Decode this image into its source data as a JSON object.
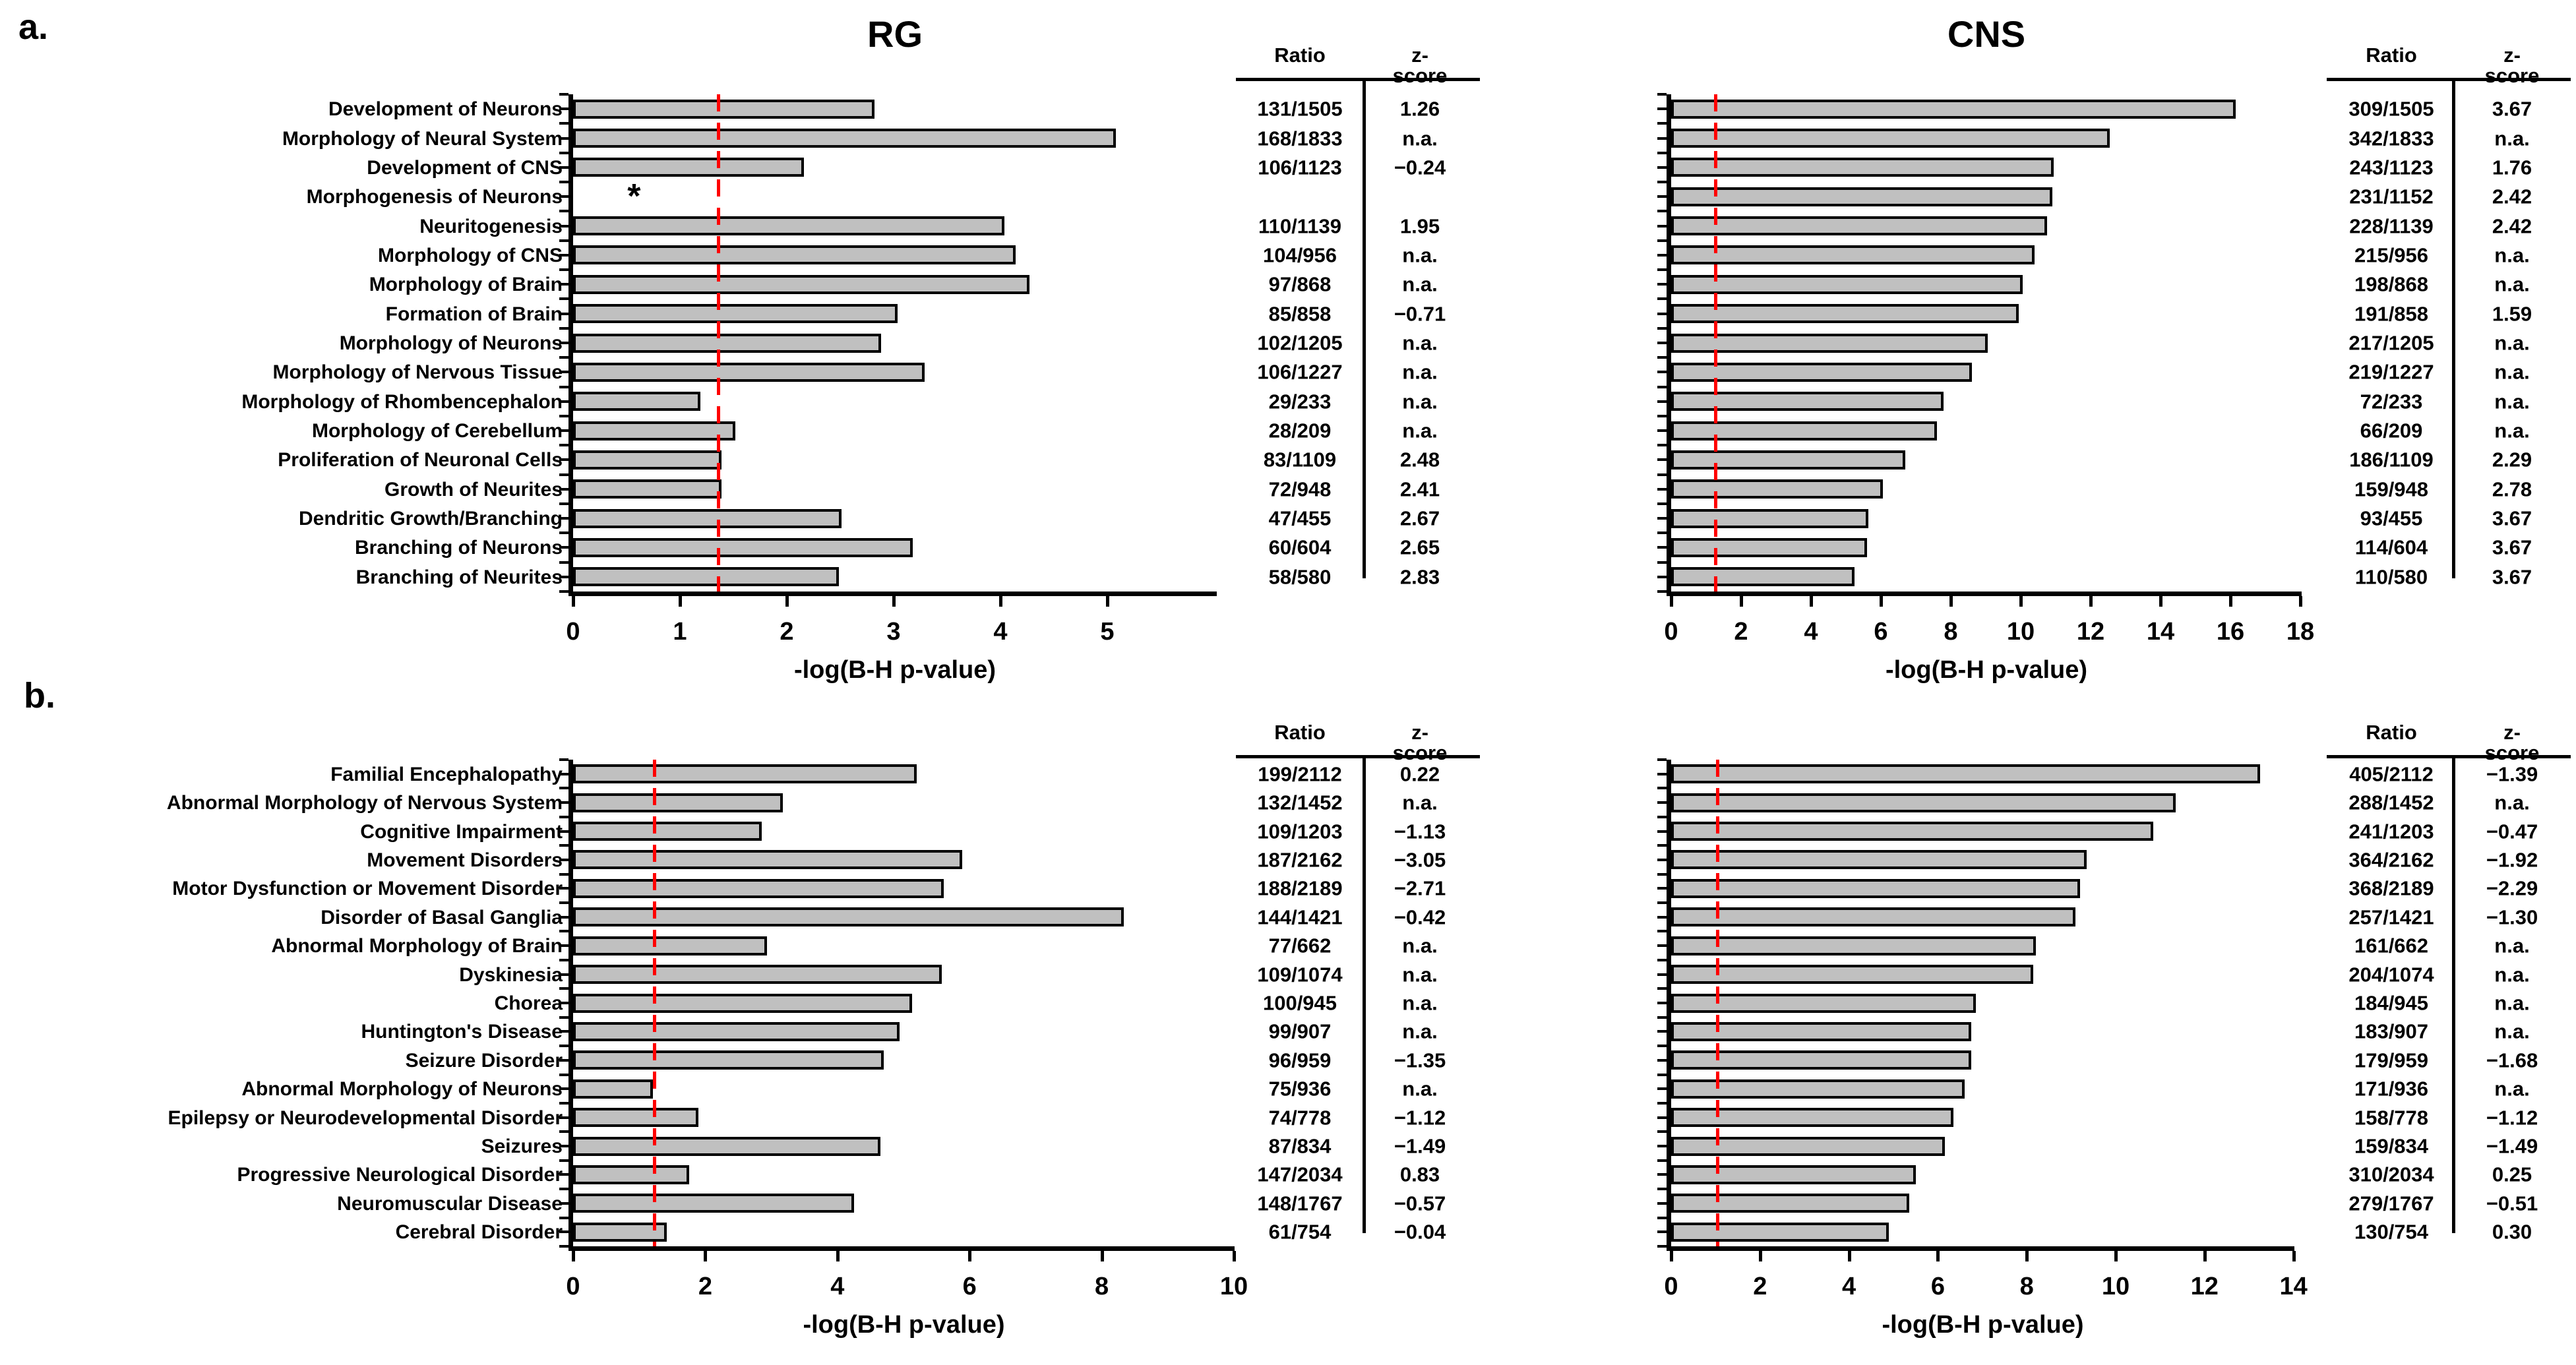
{
  "figure": {
    "panel_a_letter": "a.",
    "panel_b_letter": "b.",
    "bar_fill_color": "#c0c0c0",
    "bar_border_color": "#000000",
    "threshold_color": "#ff0000"
  },
  "chart_data": [
    {
      "id": "a-rg",
      "type": "bar",
      "orientation": "horizontal",
      "panel": "a",
      "title": "RG",
      "xlabel": "-log(B-H p-value)",
      "xlim": [
        0,
        5.8
      ],
      "xticks": [
        0,
        1,
        2,
        3,
        4,
        5
      ],
      "threshold_x": 1.36,
      "grid": false,
      "show_category_labels": true,
      "categories": [
        "Development of Neurons",
        "Morphology of Neural System",
        "Development of CNS",
        "Morphogenesis of Neurons",
        "Neuritogenesis",
        "Morphology of CNS",
        "Morphology of Brain",
        "Formation of Brain",
        "Morphology of Neurons",
        "Morphology of Nervous Tissue",
        "Morphology of Rhombencephalon",
        "Morphology of Cerebellum",
        "Proliferation of Neuronal Cells",
        "Growth of Neurites",
        "Dendritic Growth/Branching",
        "Branching of Neurons",
        "Branching of Neurites"
      ],
      "values": [
        2.82,
        5.08,
        2.16,
        0,
        4.04,
        4.14,
        4.27,
        3.04,
        2.88,
        3.29,
        1.19,
        1.52,
        1.39,
        1.39,
        2.51,
        3.18,
        2.49
      ],
      "annotations": [
        {
          "row": 3,
          "x": 0.57,
          "text": "*"
        }
      ],
      "table": {
        "headers": [
          "Ratio",
          "z-score"
        ],
        "rows": [
          [
            "131/1505",
            "1.26"
          ],
          [
            "168/1833",
            "n.a."
          ],
          [
            "106/1123",
            "−0.24"
          ],
          [
            "",
            ""
          ],
          [
            "110/1139",
            "1.95"
          ],
          [
            "104/956",
            "n.a."
          ],
          [
            "97/868",
            "n.a."
          ],
          [
            "85/858",
            "−0.71"
          ],
          [
            "102/1205",
            "n.a."
          ],
          [
            "106/1227",
            "n.a."
          ],
          [
            "29/233",
            "n.a."
          ],
          [
            "28/209",
            "n.a."
          ],
          [
            "83/1109",
            "2.48"
          ],
          [
            "72/948",
            "2.41"
          ],
          [
            "47/455",
            "2.67"
          ],
          [
            "60/604",
            "2.65"
          ],
          [
            "58/580",
            "2.83"
          ]
        ]
      }
    },
    {
      "id": "a-cns",
      "type": "bar",
      "orientation": "horizontal",
      "panel": "a",
      "title": "CNS",
      "xlabel": "-log(B-H p-value)",
      "xlim": [
        0,
        18
      ],
      "xticks": [
        0,
        2,
        4,
        6,
        8,
        10,
        12,
        14,
        16,
        18
      ],
      "threshold_x": 1.27,
      "grid": false,
      "show_category_labels": false,
      "categories": [
        "Development of Neurons",
        "Morphology of Neural System",
        "Development of CNS",
        "Morphogenesis of Neurons",
        "Neuritogenesis",
        "Morphology of CNS",
        "Morphology of Brain",
        "Formation of Brain",
        "Morphology of Neurons",
        "Morphology of Nervous Tissue",
        "Morphology of Rhombencephalon",
        "Morphology of Cerebellum",
        "Proliferation of Neuronal Cells",
        "Growth of Neurites",
        "Dendritic Growth/Branching",
        "Branching of Neurons",
        "Branching of Neurites"
      ],
      "values": [
        16.15,
        12.55,
        10.95,
        10.9,
        10.75,
        10.4,
        10.05,
        9.95,
        9.05,
        8.6,
        7.8,
        7.6,
        6.7,
        6.05,
        5.65,
        5.6,
        5.25
      ],
      "annotations": [],
      "table": {
        "headers": [
          "Ratio",
          "z-score"
        ],
        "rows": [
          [
            "309/1505",
            "3.67"
          ],
          [
            "342/1833",
            "n.a."
          ],
          [
            "243/1123",
            "1.76"
          ],
          [
            "231/1152",
            "2.42"
          ],
          [
            "228/1139",
            "2.42"
          ],
          [
            "215/956",
            "n.a."
          ],
          [
            "198/868",
            "n.a."
          ],
          [
            "191/858",
            "1.59"
          ],
          [
            "217/1205",
            "n.a."
          ],
          [
            "219/1227",
            "n.a."
          ],
          [
            "72/233",
            "n.a."
          ],
          [
            "66/209",
            "n.a."
          ],
          [
            "186/1109",
            "2.29"
          ],
          [
            "159/948",
            "2.78"
          ],
          [
            "93/455",
            "3.67"
          ],
          [
            "114/604",
            "3.67"
          ],
          [
            "110/580",
            "3.67"
          ]
        ]
      }
    },
    {
      "id": "b-rg",
      "type": "bar",
      "orientation": "horizontal",
      "panel": "b",
      "title": "",
      "xlabel": "-log(B-H p-value)",
      "xlim": [
        0,
        10
      ],
      "xticks": [
        0,
        2,
        4,
        6,
        8,
        10
      ],
      "threshold_x": 1.23,
      "grid": false,
      "show_category_labels": true,
      "categories": [
        "Familial Encephalopathy",
        "Abnormal Morphology of Nervous System",
        "Cognitive Impairment",
        "Movement Disorders",
        "Motor Dysfunction or Movement Disorder",
        "Disorder of Basal Ganglia",
        "Abnormal Morphology of Brain",
        "Dyskinesia",
        "Chorea",
        "Huntington's Disease",
        "Seizure Disorder",
        "Abnormal Morphology of Neurons",
        "Epilepsy or Neurodevelopmental Disorder",
        "Seizures",
        "Progressive Neurological Disorder",
        "Neuromuscular Disease",
        "Cerebral Disorder"
      ],
      "values": [
        5.2,
        3.17,
        2.85,
        5.89,
        5.61,
        8.33,
        2.93,
        5.58,
        5.13,
        4.94,
        4.7,
        1.21,
        1.9,
        4.65,
        1.76,
        4.25,
        1.42
      ],
      "annotations": [],
      "table": {
        "headers": [
          "Ratio",
          "z-score"
        ],
        "rows": [
          [
            "199/2112",
            "0.22"
          ],
          [
            "132/1452",
            "n.a."
          ],
          [
            "109/1203",
            "−1.13"
          ],
          [
            "187/2162",
            "−3.05"
          ],
          [
            "188/2189",
            "−2.71"
          ],
          [
            "144/1421",
            "−0.42"
          ],
          [
            "77/662",
            "n.a."
          ],
          [
            "109/1074",
            "n.a."
          ],
          [
            "100/945",
            "n.a."
          ],
          [
            "99/907",
            "n.a."
          ],
          [
            "96/959",
            "−1.35"
          ],
          [
            "75/936",
            "n.a."
          ],
          [
            "74/778",
            "−1.12"
          ],
          [
            "87/834",
            "−1.49"
          ],
          [
            "147/2034",
            "0.83"
          ],
          [
            "148/1767",
            "−0.57"
          ],
          [
            "61/754",
            "−0.04"
          ]
        ]
      }
    },
    {
      "id": "b-cns",
      "type": "bar",
      "orientation": "horizontal",
      "panel": "b",
      "title": "",
      "xlabel": "-log(B-H p-value)",
      "xlim": [
        0,
        14
      ],
      "xticks": [
        0,
        2,
        4,
        6,
        8,
        10,
        12,
        14
      ],
      "threshold_x": 1.04,
      "grid": false,
      "show_category_labels": false,
      "categories": [
        "Familial Encephalopathy",
        "Abnormal Morphology of Nervous System",
        "Cognitive Impairment",
        "Movement Disorders",
        "Motor Dysfunction or Movement Disorder",
        "Disorder of Basal Ganglia",
        "Abnormal Morphology of Brain",
        "Dyskinesia",
        "Chorea",
        "Huntington's Disease",
        "Seizure Disorder",
        "Abnormal Morphology of Neurons",
        "Epilepsy or Neurodevelopmental Disorder",
        "Seizures",
        "Progressive Neurological Disorder",
        "Neuromuscular Disease",
        "Cerebral Disorder"
      ],
      "values": [
        13.25,
        11.35,
        10.85,
        9.35,
        9.2,
        9.1,
        8.2,
        8.15,
        6.85,
        6.75,
        6.75,
        6.6,
        6.35,
        6.15,
        5.5,
        5.35,
        4.9
      ],
      "annotations": [],
      "table": {
        "headers": [
          "Ratio",
          "z-score"
        ],
        "rows": [
          [
            "405/2112",
            "−1.39"
          ],
          [
            "288/1452",
            "n.a."
          ],
          [
            "241/1203",
            "−0.47"
          ],
          [
            "364/2162",
            "−1.92"
          ],
          [
            "368/2189",
            "−2.29"
          ],
          [
            "257/1421",
            "−1.30"
          ],
          [
            "161/662",
            "n.a."
          ],
          [
            "204/1074",
            "n.a."
          ],
          [
            "184/945",
            "n.a."
          ],
          [
            "183/907",
            "n.a."
          ],
          [
            "179/959",
            "−1.68"
          ],
          [
            "171/936",
            "n.a."
          ],
          [
            "158/778",
            "−1.12"
          ],
          [
            "159/834",
            "−1.49"
          ],
          [
            "310/2034",
            "0.25"
          ],
          [
            "279/1767",
            "−0.51"
          ],
          [
            "130/754",
            "0.30"
          ]
        ]
      }
    }
  ]
}
